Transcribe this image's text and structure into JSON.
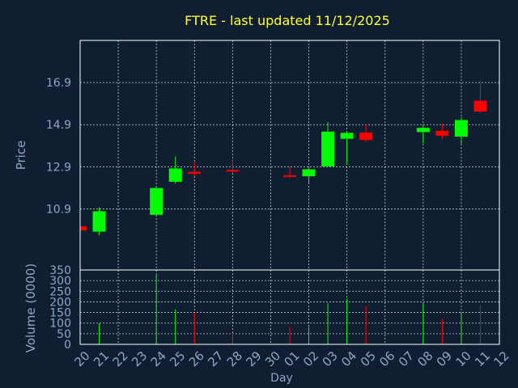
{
  "chart_data": {
    "type": "candlestick",
    "title": "FTRE - last updated 11/12/2025",
    "xlabel": "Day",
    "colors": {
      "background": "#0f1f31",
      "title": "#ffff33",
      "axis_text": "#8fa6c7",
      "grid": "#ffffff",
      "up": "#00ff00",
      "down": "#ff0000"
    },
    "grid": true,
    "x_ticks": [
      "20",
      "21",
      "22",
      "23",
      "24",
      "25",
      "26",
      "27",
      "28",
      "29",
      "30",
      "01",
      "02",
      "03",
      "04",
      "05",
      "06",
      "07",
      "08",
      "09",
      "10",
      "11",
      "12"
    ],
    "price_panel": {
      "ylabel": "Price",
      "ylim": [
        8.0,
        18.9
      ],
      "y_ticks": [
        "10.9",
        "12.9",
        "14.9",
        "16.9"
      ],
      "y_tick_values": [
        10.9,
        12.9,
        14.9,
        16.9
      ]
    },
    "volume_panel": {
      "ylabel": "Volume (0000)",
      "ylim": [
        0,
        350
      ],
      "y_ticks": [
        "0",
        "50",
        "100",
        "150",
        "200",
        "250",
        "300",
        "350"
      ],
      "y_tick_values": [
        0,
        50,
        100,
        150,
        200,
        250,
        300,
        350
      ]
    },
    "candles": [
      {
        "day": "20",
        "open": 10.07,
        "high": 10.07,
        "low": 9.88,
        "close": 9.88,
        "volume": 0
      },
      {
        "day": "21",
        "open": 9.82,
        "high": 10.97,
        "low": 9.65,
        "close": 10.79,
        "volume": 100
      },
      {
        "day": "24",
        "open": 10.62,
        "high": 11.98,
        "low": 10.58,
        "close": 11.89,
        "volume": 330
      },
      {
        "day": "25",
        "open": 12.19,
        "high": 13.38,
        "low": 12.11,
        "close": 12.82,
        "volume": 165
      },
      {
        "day": "26",
        "open": 12.66,
        "high": 13.1,
        "low": 12.45,
        "close": 12.57,
        "volume": 148
      },
      {
        "day": "28",
        "open": 12.75,
        "high": 13.27,
        "low": 12.6,
        "close": 12.68,
        "volume": 52
      },
      {
        "day": "01",
        "open": 12.5,
        "high": 12.92,
        "low": 12.37,
        "close": 12.45,
        "volume": 85
      },
      {
        "day": "02",
        "open": 12.45,
        "high": 12.9,
        "low": 12.08,
        "close": 12.78,
        "volume": 82
      },
      {
        "day": "03",
        "open": 12.92,
        "high": 15.02,
        "low": 12.92,
        "close": 14.57,
        "volume": 195
      },
      {
        "day": "04",
        "open": 14.23,
        "high": 14.57,
        "low": 13.02,
        "close": 14.51,
        "volume": 215
      },
      {
        "day": "05",
        "open": 14.52,
        "high": 14.9,
        "low": 14.08,
        "close": 14.17,
        "volume": 180
      },
      {
        "day": "08",
        "open": 14.55,
        "high": 14.82,
        "low": 14.0,
        "close": 14.75,
        "volume": 190
      },
      {
        "day": "09",
        "open": 14.61,
        "high": 14.94,
        "low": 14.23,
        "close": 14.38,
        "volume": 120
      },
      {
        "day": "10",
        "open": 14.33,
        "high": 15.25,
        "low": 13.95,
        "close": 15.12,
        "volume": 145
      },
      {
        "day": "11",
        "open": 16.04,
        "high": 16.96,
        "low": 15.45,
        "close": 15.52,
        "volume": 185
      }
    ]
  }
}
